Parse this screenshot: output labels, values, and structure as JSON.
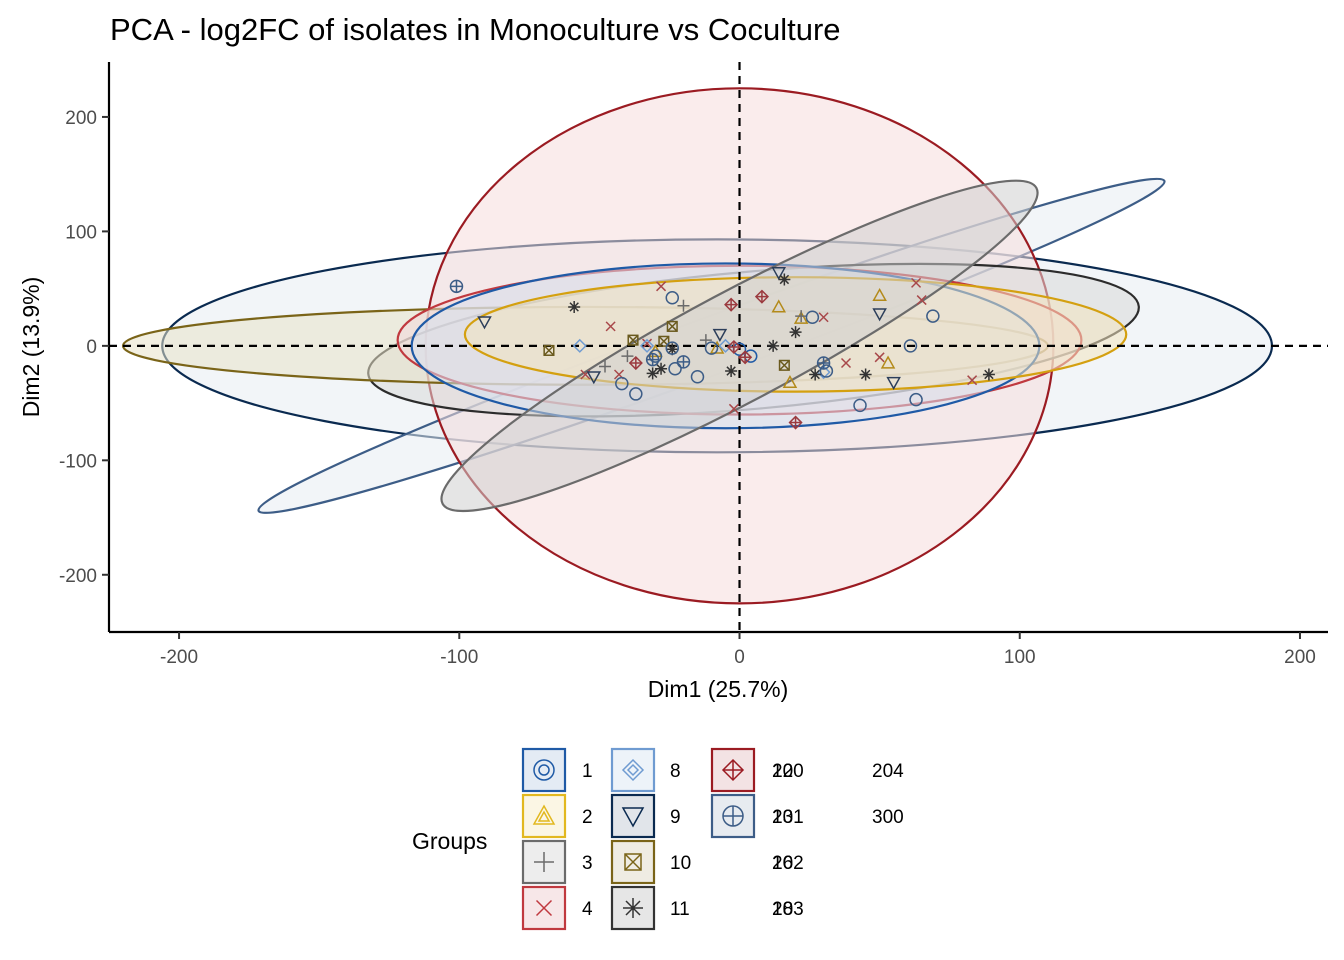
{
  "chart_data": {
    "type": "scatter",
    "title": "PCA - log2FC of isolates in Monoculture vs Coculture",
    "xlabel": "Dim1 (25.7%)",
    "ylabel": "Dim2 (13.9%)",
    "xlim": [
      -225,
      210
    ],
    "ylim": [
      -250,
      248
    ],
    "xticks": [
      -200,
      -100,
      0,
      100,
      200
    ],
    "yticks": [
      -200,
      -100,
      0,
      100,
      200
    ],
    "reference_lines": {
      "x": 0,
      "y": 0,
      "style": "dashed"
    },
    "grid": false,
    "legend_position": "bottom",
    "legend": {
      "title": "Groups",
      "entries": [
        {
          "label": "1",
          "shape": "circle-dot",
          "color": "#1f5aa6"
        },
        {
          "label": "2",
          "shape": "triangle-in-triangle",
          "color": "#e2b81f"
        },
        {
          "label": "3",
          "shape": "plus",
          "color": "#6b6b6b"
        },
        {
          "label": "4",
          "shape": "cross",
          "color": "#c0393f"
        },
        {
          "label": "8",
          "shape": "diamond-in-diamond",
          "color": "#6f9bd1"
        },
        {
          "label": "9",
          "shape": "triangle-down",
          "color": "#0a2a50"
        },
        {
          "label": "10",
          "shape": "square-cross",
          "color": "#7a6418"
        },
        {
          "label": "11",
          "shape": "asterisk",
          "color": "#333333"
        },
        {
          "label": "12",
          "shape": "diamond-plus",
          "color": "#9b1b22"
        },
        {
          "label": "13",
          "shape": "circle-plus",
          "color": "#3d5d87"
        },
        {
          "label": "16",
          "shape": "none",
          "color": "#000000"
        },
        {
          "label": "18",
          "shape": "none",
          "color": "#000000"
        },
        {
          "label": "200",
          "shape": "none",
          "color": "#000000"
        },
        {
          "label": "201",
          "shape": "none",
          "color": "#000000"
        },
        {
          "label": "202",
          "shape": "none",
          "color": "#000000"
        },
        {
          "label": "203",
          "shape": "none",
          "color": "#000000"
        },
        {
          "label": "204",
          "shape": "none",
          "color": "#000000"
        },
        {
          "label": "300",
          "shape": "none",
          "color": "#000000"
        }
      ]
    },
    "ellipses": [
      {
        "group": "9",
        "color": "#0a2a50",
        "fill": "#e8ecf3",
        "center": [
          -8,
          0
        ],
        "rx": 198,
        "ry": 93,
        "angle": 0
      },
      {
        "group": "13",
        "color": "#3d5d87",
        "fill": "#e8ecf3",
        "center": [
          -10,
          0
        ],
        "rx": 172,
        "ry": 25,
        "angle": -20
      },
      {
        "group": "12",
        "color": "#9b1b22",
        "fill": "#f5dcdd",
        "center": [
          0,
          0
        ],
        "rx": 112,
        "ry": 225,
        "angle": 0
      },
      {
        "group": "11",
        "color": "#2c2c2c",
        "fill": "#d8d8d8",
        "center": [
          5,
          5
        ],
        "rx": 138,
        "ry": 60,
        "angle": -5
      },
      {
        "group": "10",
        "color": "#7a6418",
        "fill": "#e8e1c8",
        "center": [
          -55,
          0
        ],
        "rx": 165,
        "ry": 34,
        "angle": 0
      },
      {
        "group": "4",
        "color": "#c0393f",
        "fill": "#f3d9da",
        "center": [
          0,
          5
        ],
        "rx": 122,
        "ry": 65,
        "angle": 0
      },
      {
        "group": "1",
        "color": "#1f5aa6",
        "fill": "#d6e1f0",
        "center": [
          -5,
          0
        ],
        "rx": 112,
        "ry": 72,
        "angle": 0
      },
      {
        "group": "2",
        "color": "#d4a010",
        "fill": "#f2e4c0",
        "center": [
          20,
          10
        ],
        "rx": 118,
        "ry": 50,
        "angle": 0
      },
      {
        "group": "3",
        "color": "#6b6b6b",
        "fill": "#cfcfcf",
        "center": [
          0,
          0
        ],
        "rx": 120,
        "ry": 48,
        "angle": -28
      }
    ],
    "series": [
      {
        "name": "1",
        "shape": "circle",
        "color": "#1f5aa6",
        "points": [
          [
            4,
            -9
          ],
          [
            0,
            -3
          ]
        ]
      },
      {
        "name": "2",
        "shape": "triangle",
        "color": "#b38a1a",
        "points": [
          [
            50,
            44
          ],
          [
            14,
            34
          ],
          [
            53,
            -15
          ],
          [
            -8,
            -2
          ],
          [
            18,
            -32
          ],
          [
            -30,
            -5
          ],
          [
            22,
            24
          ]
        ]
      },
      {
        "name": "3",
        "shape": "plus",
        "color": "#6b6b6b",
        "points": [
          [
            -20,
            35
          ],
          [
            22,
            26
          ],
          [
            -40,
            -9
          ],
          [
            -12,
            5
          ],
          [
            -48,
            -18
          ]
        ]
      },
      {
        "name": "4",
        "shape": "cross",
        "color": "#a8484a",
        "points": [
          [
            -28,
            52
          ],
          [
            -46,
            17
          ],
          [
            -33,
            2
          ],
          [
            -55,
            -25
          ],
          [
            -43,
            -25
          ],
          [
            63,
            55
          ],
          [
            83,
            -30
          ],
          [
            30,
            25
          ],
          [
            38,
            -15
          ],
          [
            -2,
            -55
          ],
          [
            50,
            -10
          ],
          [
            65,
            40
          ]
        ]
      },
      {
        "name": "8",
        "shape": "diamond",
        "color": "#6f9bd1",
        "points": [
          [
            -57,
            0
          ],
          [
            30,
            -23
          ],
          [
            -5,
            0
          ],
          [
            -33,
            0
          ]
        ]
      },
      {
        "name": "9",
        "shape": "triangle-down",
        "color": "#2c3e5a",
        "points": [
          [
            -91,
            21
          ],
          [
            -52,
            -27
          ],
          [
            55,
            -32
          ],
          [
            50,
            28
          ],
          [
            -7,
            10
          ],
          [
            14,
            64
          ]
        ]
      },
      {
        "name": "10",
        "shape": "square-cross",
        "color": "#6a5a1e",
        "points": [
          [
            -68,
            -4
          ],
          [
            -38,
            5
          ],
          [
            -27,
            4
          ],
          [
            16,
            -17
          ],
          [
            -24,
            17
          ]
        ]
      },
      {
        "name": "11",
        "shape": "asterisk",
        "color": "#333333",
        "points": [
          [
            -59,
            34
          ],
          [
            -31,
            -24
          ],
          [
            -28,
            -20
          ],
          [
            -24,
            -3
          ],
          [
            12,
            0
          ],
          [
            16,
            58
          ],
          [
            20,
            12
          ],
          [
            27,
            -25
          ],
          [
            45,
            -25
          ],
          [
            89,
            -25
          ],
          [
            -3,
            -22
          ]
        ]
      },
      {
        "name": "12",
        "shape": "diamond-plus",
        "color": "#9b3a3f",
        "points": [
          [
            -2,
            -1
          ],
          [
            -37,
            -15
          ],
          [
            -3,
            36
          ],
          [
            8,
            43
          ],
          [
            20,
            -67
          ],
          [
            2,
            -10
          ]
        ]
      },
      {
        "name": "13",
        "shape": "circle-plus",
        "color": "#3d5d87",
        "points": [
          [
            -101,
            52
          ],
          [
            -31,
            -12
          ],
          [
            -20,
            -14
          ],
          [
            30,
            -15
          ]
        ]
      },
      {
        "name": "13",
        "shape": "circle",
        "color": "#3d5d87",
        "points": [
          [
            -24,
            42
          ],
          [
            -42,
            -33
          ],
          [
            -37,
            -42
          ],
          [
            -24,
            -2
          ],
          [
            -30,
            -9
          ],
          [
            -23,
            -20
          ],
          [
            -15,
            -27
          ],
          [
            26,
            25
          ],
          [
            43,
            -52
          ],
          [
            63,
            -47
          ],
          [
            69,
            26
          ],
          [
            61,
            0
          ],
          [
            31,
            -22
          ],
          [
            -10,
            -2
          ]
        ]
      }
    ]
  }
}
